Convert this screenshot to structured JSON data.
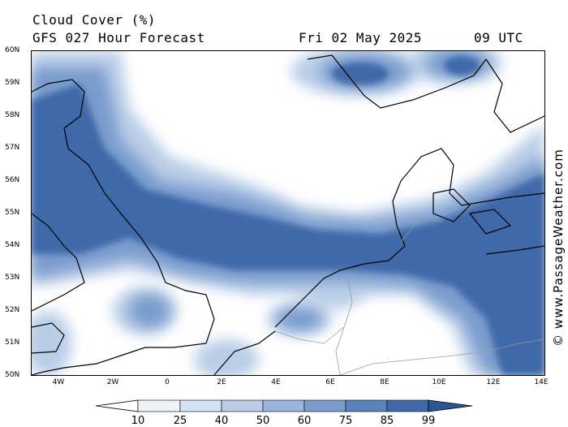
{
  "header": {
    "title": "Cloud Cover (%)",
    "model": "GFS 027 Hour Forecast",
    "date": "Fri 02 May 2025",
    "time": "09 UTC"
  },
  "watermark": "© www.PassageWeather.com",
  "axes": {
    "lat_labels": [
      "60N",
      "59N",
      "58N",
      "57N",
      "56N",
      "55N",
      "54N",
      "53N",
      "52N",
      "51N",
      "50N"
    ],
    "lon_labels": [
      "4W",
      "2W",
      "0",
      "2E",
      "4E",
      "6E",
      "8E",
      "10E",
      "12E",
      "14E"
    ],
    "lat_range": [
      50,
      60
    ],
    "lon_range": [
      -5,
      14
    ]
  },
  "legend": {
    "levels": [
      "10",
      "25",
      "40",
      "50",
      "60",
      "75",
      "85",
      "99"
    ],
    "colors": [
      "#ffffff",
      "#eef3fa",
      "#d6e2f1",
      "#b9cde7",
      "#9ab5db",
      "#7a9ccd",
      "#5b82bd",
      "#3f69a9",
      "#2d5596"
    ]
  },
  "colors": {
    "dense_cloud": "#3f69a9",
    "medium_cloud": "#7a9ccd",
    "light_cloud": "#b9cde7",
    "clear": "#ffffff",
    "coast": "#000000",
    "border": "#9a9a9a"
  }
}
